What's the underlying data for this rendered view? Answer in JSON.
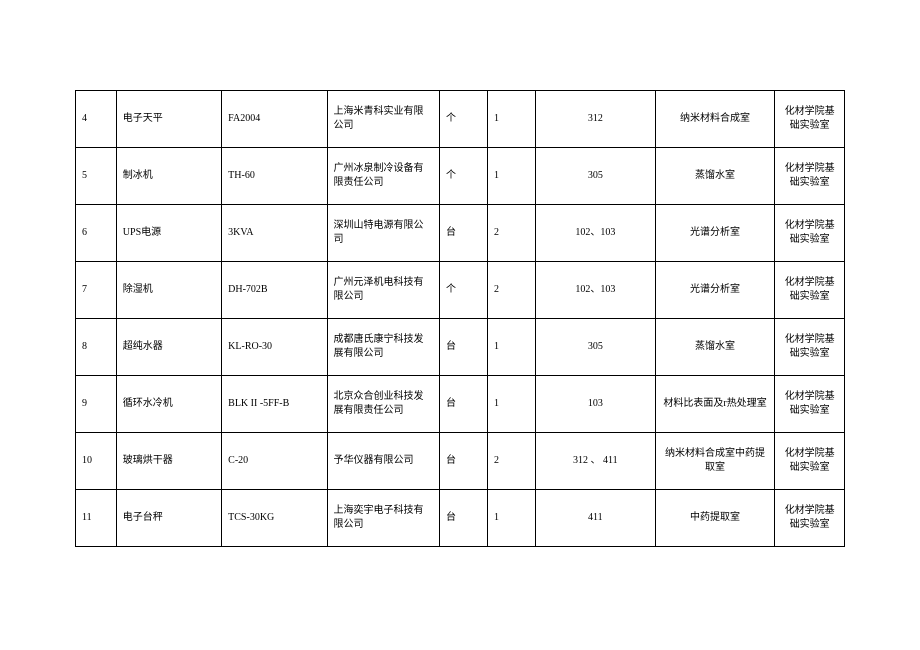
{
  "table": {
    "rows": [
      {
        "idx": "4",
        "name": "电子天平",
        "model": "FA2004",
        "mfr": "上海米青科实业有限公司",
        "unit": "个",
        "qty": "1",
        "room": "312",
        "loc": "纳米材料合成室",
        "dept": "化材学院基础实验室"
      },
      {
        "idx": "5",
        "name": "制冰机",
        "model": "TH-60",
        "mfr": "广州冰泉制冷设备有限责任公司",
        "unit": "个",
        "qty": "1",
        "room": "305",
        "loc": "蒸馏水室",
        "dept": "化材学院基础实验室"
      },
      {
        "idx": "6",
        "name": "UPS电源",
        "model": "3KVA",
        "mfr": "深圳山特电源有限公司",
        "unit": "台",
        "qty": "2",
        "room": "102、103",
        "loc": "光谱分析室",
        "dept": "化材学院基础实验室"
      },
      {
        "idx": "7",
        "name": "除湿机",
        "model": "DH-702B",
        "mfr": "广州元泽机电科技有限公司",
        "unit": "个",
        "qty": "2",
        "room": "102、103",
        "loc": "光谱分析室",
        "dept": "化材学院基础实验室"
      },
      {
        "idx": "8",
        "name": "超纯水器",
        "model": "KL-RO-30",
        "mfr": "成都唐氏康宁科技发展有限公司",
        "unit": "台",
        "qty": "1",
        "room": "305",
        "loc": "蒸馏水室",
        "dept": "化材学院基础实验室"
      },
      {
        "idx": "9",
        "name": "循环水冷机",
        "model": "BLK II -5FF-B",
        "mfr": "北京众合创业科技发展有限责任公司",
        "unit": "台",
        "qty": "1",
        "room": "103",
        "loc": "材料比表面及r热处理室",
        "dept": "化材学院基础实验室"
      },
      {
        "idx": "10",
        "name": "玻璃烘干器",
        "model": "C-20",
        "mfr": "予华仪器有限公司",
        "unit": "台",
        "qty": "2",
        "room": "312 、 411",
        "loc": "纳米材料合成室中药提取室",
        "dept": "化材学院基础实验室"
      },
      {
        "idx": "11",
        "name": "电子台秤",
        "model": "TCS-30KG",
        "mfr": "上海奕宇电子科技有限公司",
        "unit": "台",
        "qty": "1",
        "room": "411",
        "loc": "中药提取室",
        "dept": "化材学院基础实验室"
      }
    ]
  }
}
